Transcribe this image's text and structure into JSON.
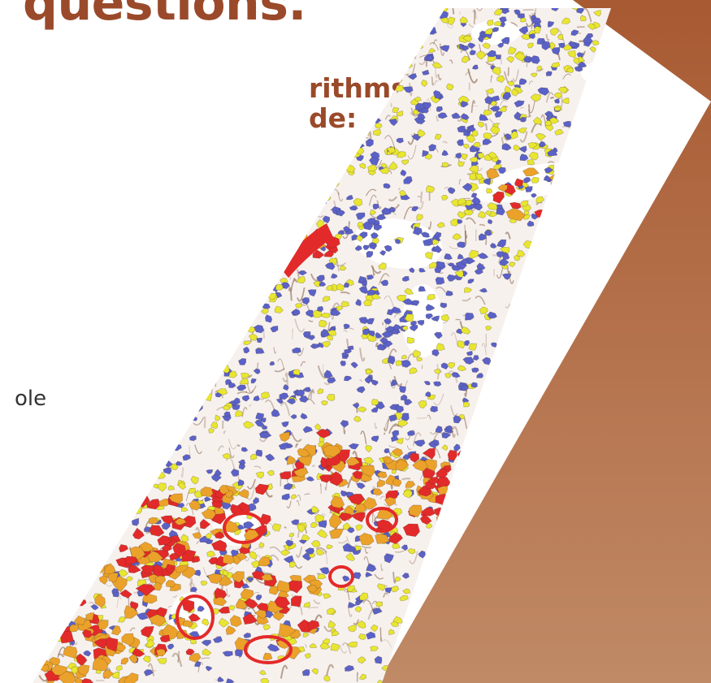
{
  "headline": "questions.",
  "subhead": {
    "line1": "rithms,",
    "line2": "de:"
  },
  "body_fragment": "ole",
  "image": {
    "subject": "segmented tissue image",
    "colors": {
      "accent_text": "#9a4a2a",
      "panel_top": "#a85a32",
      "panel_bottom": "#c08a66",
      "cell_blue": "#5a62c8",
      "cell_yellow": "#e8e630",
      "cell_orange": "#eba22a",
      "cell_red": "#e32a2a",
      "stroma_brown": "#8a6a52"
    }
  }
}
